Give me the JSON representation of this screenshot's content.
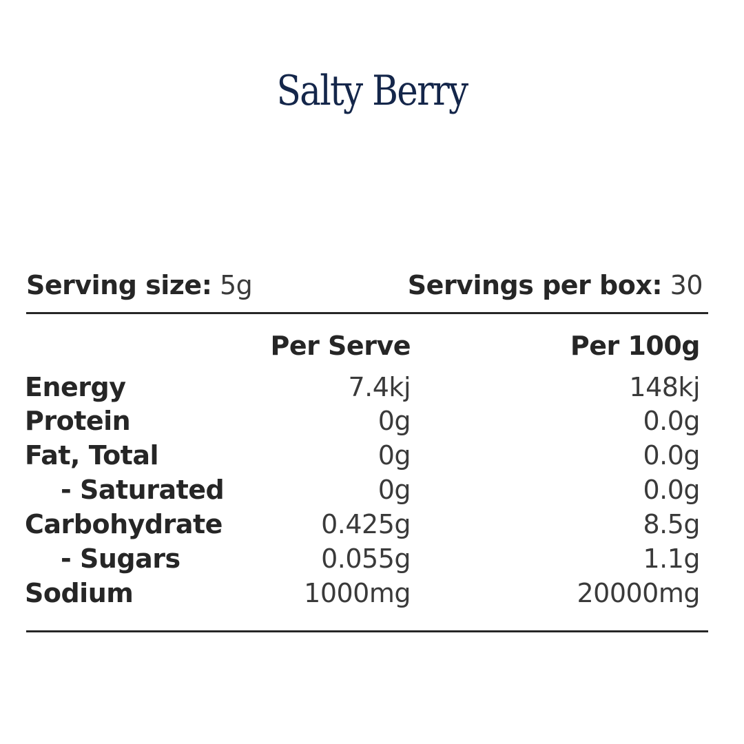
{
  "title": "Salty Berry",
  "serving": {
    "size_label": "Serving size:",
    "size_value": "5g",
    "per_box_label": "Servings per box:",
    "per_box_value": "30"
  },
  "table": {
    "headers": [
      "Per Serve",
      "Per 100g"
    ],
    "rows": [
      {
        "nutrient": "Energy",
        "per_serve": "7.4kj",
        "per_100g": "148kj",
        "sub": false
      },
      {
        "nutrient": "Protein",
        "per_serve": "0g",
        "per_100g": "0.0g",
        "sub": false
      },
      {
        "nutrient": "Fat, Total",
        "per_serve": "0g",
        "per_100g": "0.0g",
        "sub": false
      },
      {
        "nutrient": "- Saturated",
        "per_serve": "0g",
        "per_100g": "0.0g",
        "sub": true
      },
      {
        "nutrient": "Carbohydrate",
        "per_serve": "0.425g",
        "per_100g": "8.5g",
        "sub": false
      },
      {
        "nutrient": "- Sugars",
        "per_serve": "0.055g",
        "per_100g": "1.1g",
        "sub": true
      },
      {
        "nutrient": "Sodium",
        "per_serve": "1000mg",
        "per_100g": "20000mg",
        "sub": false
      }
    ]
  },
  "colors": {
    "title": "#14264a",
    "text": "#262626",
    "background": "#ffffff"
  }
}
